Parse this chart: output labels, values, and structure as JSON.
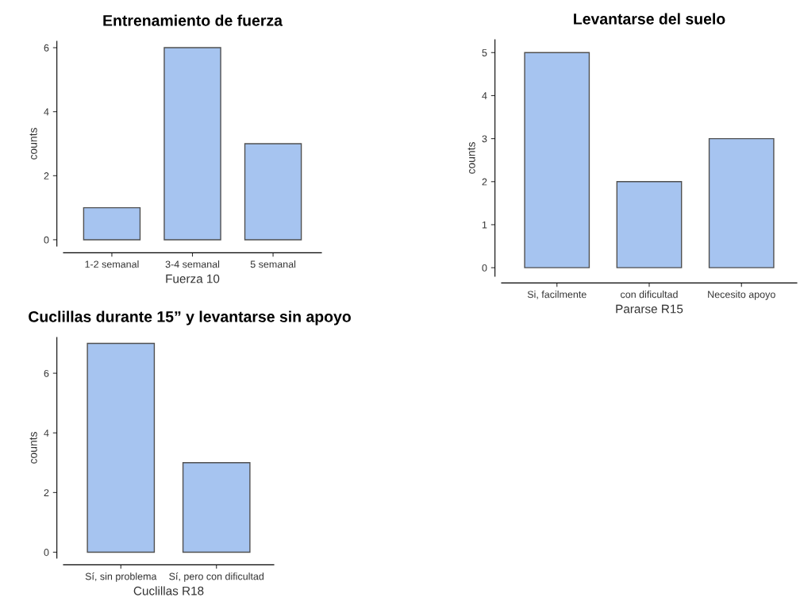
{
  "chart_data": [
    {
      "type": "bar",
      "title": "Entrenamiento de fuerza",
      "xlabel": "Fuerza 10",
      "ylabel": "counts",
      "categories": [
        "1-2 semanal",
        "3-4 semanal",
        "5 semanal"
      ],
      "values": [
        1,
        6,
        3
      ],
      "color": "#a6c4f0",
      "ylim": [
        -0.2,
        6.2
      ],
      "yticks": [
        0,
        2,
        4,
        6
      ],
      "grid": false,
      "legend": false
    },
    {
      "type": "bar",
      "title": "Levantarse del suelo",
      "xlabel": "Pararse R15",
      "ylabel": "counts",
      "categories": [
        "Si, facilmente",
        "con dificultad",
        "Necesito apoyo"
      ],
      "values": [
        5,
        2,
        3
      ],
      "color": "#a6c4f0",
      "ylim": [
        -0.2,
        5.3
      ],
      "yticks": [
        0,
        1,
        2,
        3,
        4,
        5
      ],
      "grid": false,
      "legend": false
    },
    {
      "type": "bar",
      "title": "Cuclillas durante 15” y levantarse sin apoyo",
      "xlabel": "Cuclillas R18",
      "ylabel": "counts",
      "categories": [
        "Sí, sin problema",
        "Sí, pero con dificultad"
      ],
      "values": [
        7,
        3
      ],
      "color": "#a6c4f0",
      "ylim": [
        -0.2,
        7.2
      ],
      "yticks": [
        0,
        2,
        4,
        6
      ],
      "grid": false,
      "legend": false
    }
  ]
}
